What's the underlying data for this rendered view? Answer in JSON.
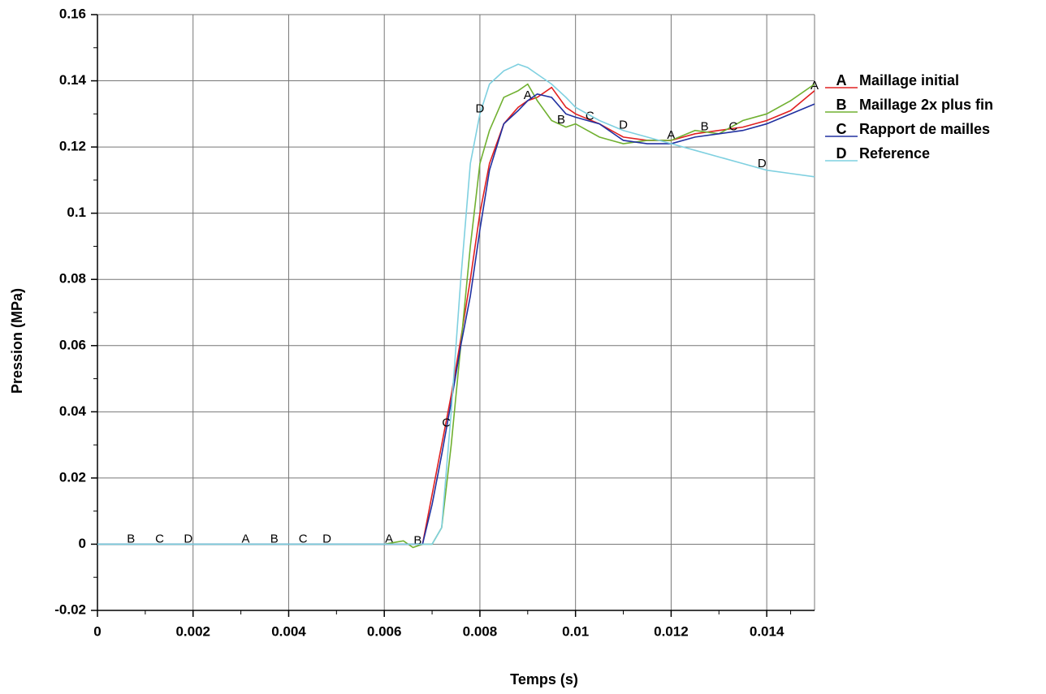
{
  "chart_data": {
    "type": "line",
    "xlabel": "Temps (s)",
    "ylabel": "Pression (MPa)",
    "x": [
      0,
      0.006,
      0.0064,
      0.0066,
      0.0068,
      0.007,
      0.0072,
      0.0074,
      0.0076,
      0.0078,
      0.008,
      0.0082,
      0.0085,
      0.0088,
      0.009,
      0.0092,
      0.0095,
      0.0098,
      0.01,
      0.0105,
      0.011,
      0.0115,
      0.012,
      0.0125,
      0.013,
      0.0135,
      0.014,
      0.0145,
      0.015
    ],
    "series": [
      {
        "name": "Maillage initial",
        "marker": "A",
        "color": "#e02020",
        "values": [
          0,
          0,
          0,
          0,
          0,
          0.015,
          0.03,
          0.045,
          0.062,
          0.08,
          0.1,
          0.115,
          0.127,
          0.132,
          0.134,
          0.135,
          0.138,
          0.132,
          0.13,
          0.127,
          0.123,
          0.122,
          0.122,
          0.124,
          0.125,
          0.126,
          0.128,
          0.131,
          0.137
        ],
        "markers_x": [
          0.0031,
          0.0061,
          0.009,
          0.012,
          0.015
        ]
      },
      {
        "name": "Maillage 2x plus fin",
        "marker": "B",
        "color": "#70b030",
        "values": [
          0,
          0,
          0.001,
          -0.001,
          0,
          0,
          0.005,
          0.03,
          0.06,
          0.09,
          0.115,
          0.125,
          0.135,
          0.137,
          0.139,
          0.134,
          0.128,
          0.126,
          0.127,
          0.123,
          0.121,
          0.122,
          0.122,
          0.125,
          0.124,
          0.128,
          0.13,
          0.134,
          0.139
        ],
        "markers_x": [
          0.0007,
          0.0037,
          0.0067,
          0.0097,
          0.0127
        ]
      },
      {
        "name": "Rapport de mailles",
        "marker": "C",
        "color": "#2030a0",
        "values": [
          0,
          0,
          0,
          0,
          0,
          0.012,
          0.027,
          0.043,
          0.06,
          0.075,
          0.095,
          0.113,
          0.127,
          0.131,
          0.134,
          0.136,
          0.135,
          0.13,
          0.129,
          0.127,
          0.122,
          0.121,
          0.121,
          0.123,
          0.124,
          0.125,
          0.127,
          0.13,
          0.133
        ],
        "markers_x": [
          0.0013,
          0.0043,
          0.0073,
          0.0103,
          0.0133
        ]
      },
      {
        "name": "Reference",
        "marker": "D",
        "color": "#7fd0e0",
        "values": [
          0,
          0,
          0,
          0,
          0,
          0,
          0.005,
          0.04,
          0.08,
          0.115,
          0.13,
          0.139,
          0.143,
          0.145,
          0.144,
          0.142,
          0.139,
          0.135,
          0.132,
          0.128,
          0.125,
          0.123,
          0.121,
          0.119,
          0.117,
          0.115,
          0.113,
          0.112,
          0.111
        ],
        "markers_x": [
          0.0019,
          0.0048,
          0.008,
          0.011,
          0.0139
        ]
      }
    ],
    "xlim": [
      0,
      0.015
    ],
    "xticks": [
      0,
      0.002,
      0.004,
      0.006,
      0.008,
      0.01,
      0.012,
      0.014
    ],
    "ylim": [
      -0.02,
      0.16
    ],
    "yticks": [
      -0.02,
      0,
      0.02,
      0.04,
      0.06,
      0.08,
      0.1,
      0.12,
      0.14,
      0.16
    ],
    "grid": true
  }
}
